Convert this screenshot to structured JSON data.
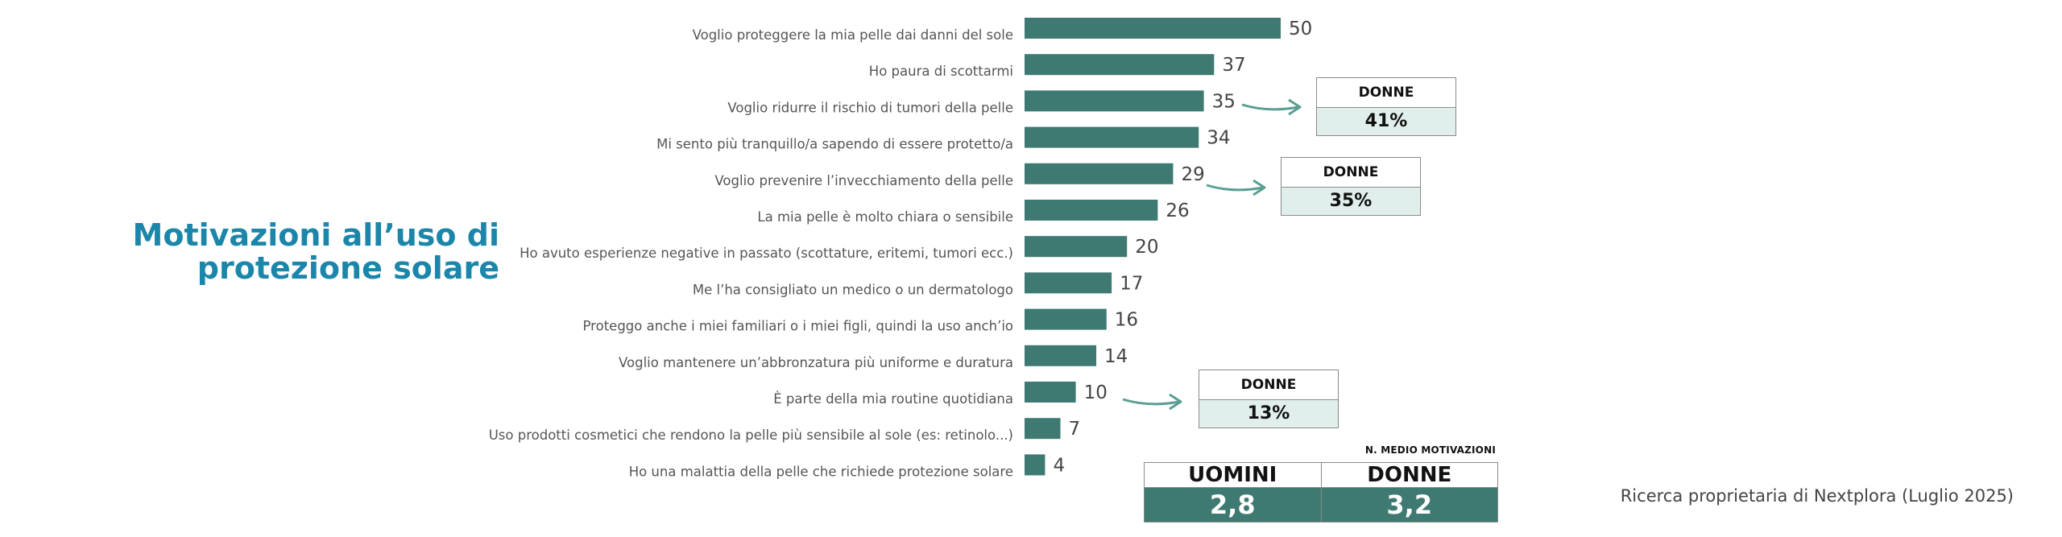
{
  "title": "Motivazioni all’uso di protezione solare",
  "colors": {
    "bar": "#3e7a72",
    "title": "#1b86aa",
    "callout_fill": "#e1efec",
    "arrow": "#5a9e94"
  },
  "chart_data": {
    "type": "bar",
    "orientation": "horizontal",
    "categories": [
      "Voglio proteggere la mia pelle dai danni del sole",
      "Ho paura di scottarmi",
      "Voglio ridurre il rischio di tumori della pelle",
      "Mi sento più tranquillo/a sapendo di essere protetto/a",
      "Voglio prevenire l’invecchiamento della pelle",
      "La mia pelle è molto chiara o sensibile",
      "Ho avuto esperienze negative in passato (scottature, eritemi, tumori ecc.)",
      "Me l’ha consigliato un medico o un dermatologo",
      "Proteggo anche i miei familiari o i miei figli, quindi la uso anch’io",
      "Voglio mantenere un’abbronzatura più uniforme e duratura",
      "È parte della mia routine quotidiana",
      "Uso prodotti cosmetici che rendono la pelle più sensibile al sole (es: retinolo...)",
      "Ho una malattia della pelle che richiede protezione solare"
    ],
    "values": [
      50,
      37,
      35,
      34,
      29,
      26,
      20,
      17,
      16,
      14,
      10,
      7,
      4
    ],
    "xlim": [
      0,
      50
    ],
    "grid": false,
    "legend": "none"
  },
  "callouts": [
    {
      "category_index": 2,
      "header": "DONNE",
      "value": "41%"
    },
    {
      "category_index": 4,
      "header": "DONNE",
      "value": "35%"
    },
    {
      "category_index": 10,
      "header": "DONNE",
      "value": "13%"
    }
  ],
  "avg_motivations": {
    "caption": "N. MEDIO MOTIVAZIONI",
    "columns": [
      {
        "header": "UOMINI",
        "value": "2,8"
      },
      {
        "header": "DONNE",
        "value": "3,2"
      }
    ]
  },
  "source": "Ricerca proprietaria di Nextplora (Luglio 2025)"
}
